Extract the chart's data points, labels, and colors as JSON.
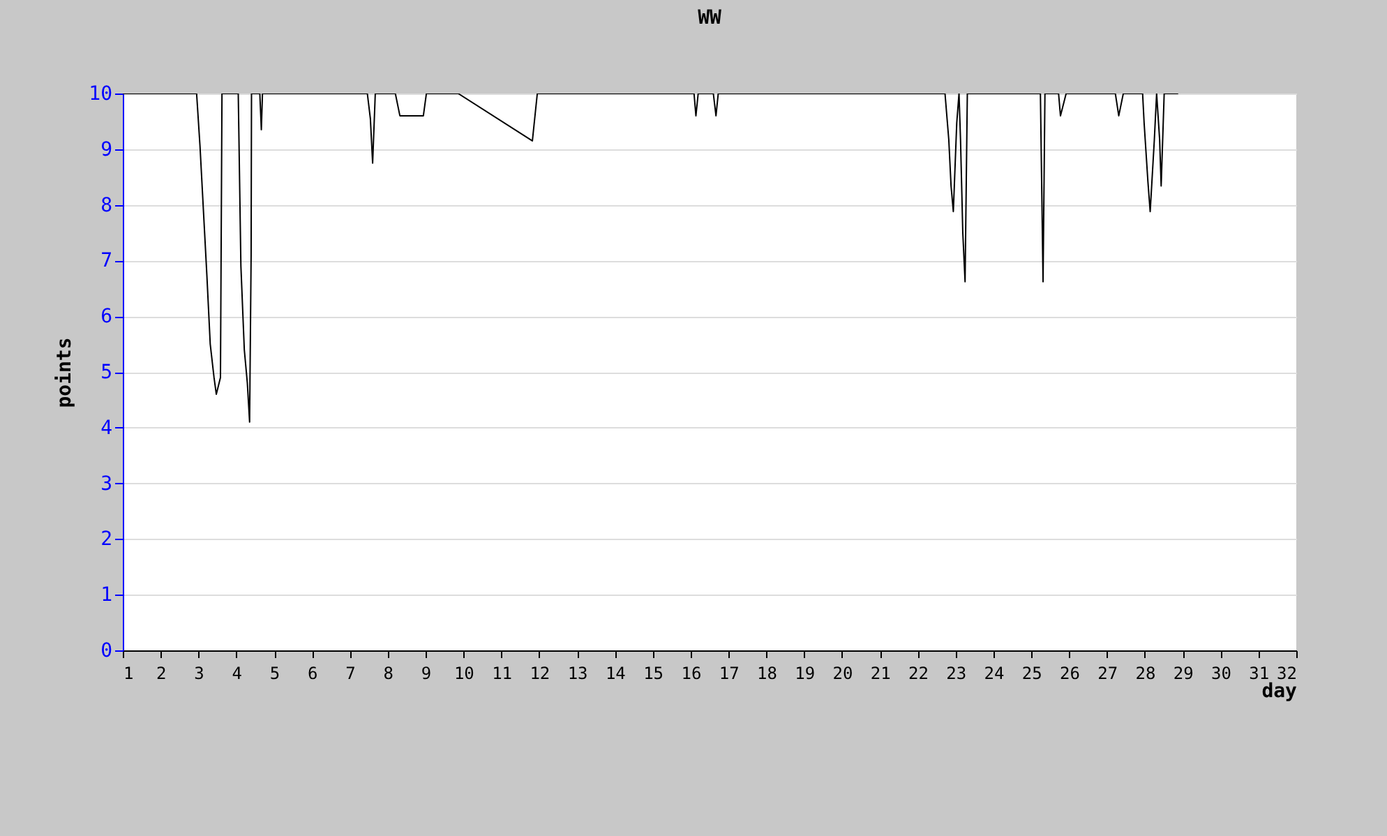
{
  "chart_data": {
    "type": "line",
    "title": "WW",
    "xlabel": "day",
    "ylabel": "points",
    "xlim": [
      1,
      32
    ],
    "xticks": [
      1,
      2,
      3,
      4,
      5,
      6,
      7,
      8,
      9,
      10,
      11,
      12,
      13,
      14,
      15,
      16,
      17,
      18,
      19,
      20,
      21,
      22,
      23,
      24,
      25,
      26,
      27,
      28,
      29,
      30,
      31,
      32
    ],
    "ylim": [
      0,
      10
    ],
    "yticks": [
      0,
      1,
      2,
      3,
      4,
      5,
      6,
      7,
      8,
      9,
      10
    ],
    "grid": "y",
    "marker": "none",
    "line_style": "solid",
    "series": [
      {
        "color": "#000000",
        "x": [
          1,
          2.95,
          3.04,
          3.13,
          3.22,
          3.31,
          3.41,
          3.47,
          3.58,
          3.62,
          4.05,
          4.12,
          4.21,
          4.29,
          4.35,
          4.39,
          4.4,
          4.62,
          4.66,
          4.69,
          7.46,
          7.54,
          7.6,
          7.67,
          8.2,
          8.32,
          8.94,
          9.02,
          9.86,
          11.82,
          11.95,
          16.09,
          16.14,
          16.2,
          16.6,
          16.67,
          16.73,
          22.72,
          22.82,
          22.88,
          22.94,
          23.03,
          23.09,
          23.13,
          23.19,
          23.25,
          23.31,
          25.24,
          25.31,
          25.36,
          25.72,
          25.77,
          25.92,
          27.22,
          27.31,
          27.43,
          27.94,
          27.98,
          28.08,
          28.14,
          28.25,
          28.31,
          28.39,
          28.43,
          28.51,
          28.88
        ],
        "values": [
          10,
          10,
          9.05,
          7.9,
          6.75,
          5.5,
          4.9,
          4.6,
          4.9,
          10,
          10,
          6.9,
          5.4,
          4.8,
          4.1,
          7.1,
          10,
          10,
          9.35,
          10,
          10,
          9.55,
          8.75,
          10,
          10,
          9.6,
          9.6,
          10,
          10,
          9.15,
          10,
          10,
          9.6,
          10,
          10,
          9.6,
          10,
          10,
          9.17,
          8.34,
          7.88,
          9.47,
          10,
          9.17,
          7.5,
          6.62,
          10,
          10,
          6.62,
          10,
          10,
          9.6,
          10,
          10,
          9.6,
          10,
          10,
          9.47,
          8.42,
          7.88,
          9.17,
          10,
          9.17,
          8.34,
          10,
          10
        ]
      }
    ]
  }
}
